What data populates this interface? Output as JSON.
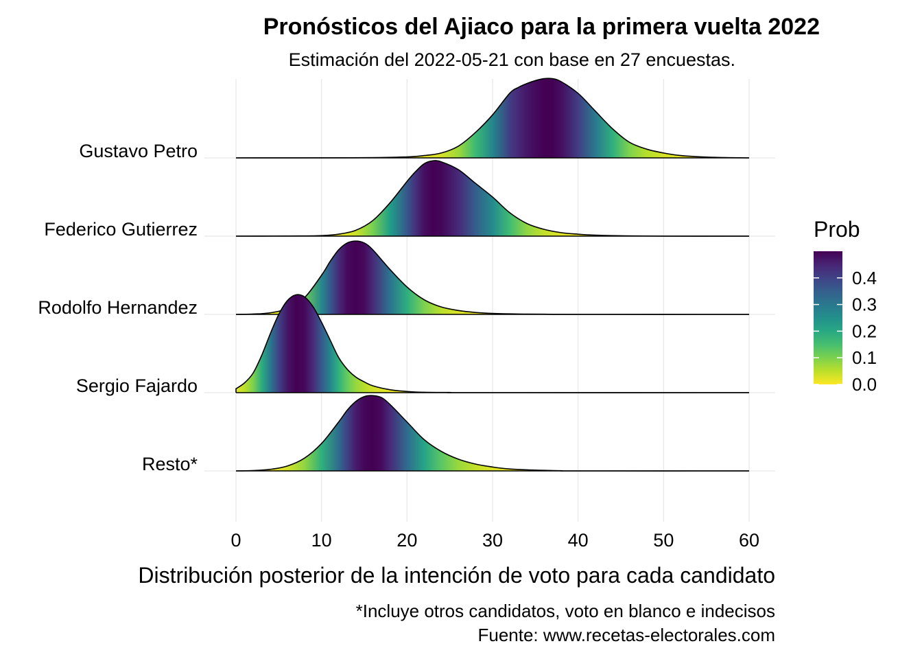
{
  "chart_data": {
    "type": "ridgeline",
    "title": "Pronósticos del Ajiaco para la primera vuelta 2022",
    "subtitle": "Estimación del 2022-05-21 con base en 27 encuestas.",
    "xlabel": "Distribución posterior de la intención de voto para cada candidato",
    "caption": [
      "*Incluye otros candidatos, voto en blanco e indecisos",
      "Fuente: www.recetas-electorales.com"
    ],
    "xlim": [
      0,
      60
    ],
    "x_ticks": [
      0,
      10,
      20,
      30,
      40,
      50,
      60
    ],
    "grid": true,
    "legend": {
      "title": "Prob",
      "placement": "right",
      "ticks": [
        0.0,
        0.1,
        0.2,
        0.3,
        0.4
      ],
      "tick_labels": [
        "0.0",
        "0.1",
        "0.2",
        "0.3",
        "0.4"
      ],
      "range": [
        0,
        0.5
      ]
    },
    "colormap": "viridis-reversed",
    "series": [
      {
        "name": "Gustavo Petro",
        "peak": 36.5,
        "points": [
          [
            0,
            0
          ],
          [
            15,
            0.001
          ],
          [
            20,
            0.005
          ],
          [
            22,
            0.012
          ],
          [
            24,
            0.025
          ],
          [
            26,
            0.06
          ],
          [
            28,
            0.13
          ],
          [
            30,
            0.22
          ],
          [
            32,
            0.33
          ],
          [
            33,
            0.36
          ],
          [
            34,
            0.38
          ],
          [
            35,
            0.395
          ],
          [
            36,
            0.405
          ],
          [
            37,
            0.405
          ],
          [
            38,
            0.39
          ],
          [
            40,
            0.33
          ],
          [
            42,
            0.24
          ],
          [
            44,
            0.15
          ],
          [
            46,
            0.08
          ],
          [
            48,
            0.045
          ],
          [
            50,
            0.025
          ],
          [
            52,
            0.012
          ],
          [
            55,
            0.004
          ],
          [
            58,
            0.001
          ],
          [
            60,
            0
          ]
        ]
      },
      {
        "name": "Federico Gutierrez",
        "peak": 23.5,
        "points": [
          [
            0,
            0
          ],
          [
            8,
            0.001
          ],
          [
            10,
            0.003
          ],
          [
            12,
            0.01
          ],
          [
            14,
            0.03
          ],
          [
            16,
            0.08
          ],
          [
            18,
            0.17
          ],
          [
            20,
            0.28
          ],
          [
            21,
            0.33
          ],
          [
            22,
            0.37
          ],
          [
            23,
            0.385
          ],
          [
            24,
            0.38
          ],
          [
            26,
            0.34
          ],
          [
            28,
            0.27
          ],
          [
            30,
            0.2
          ],
          [
            32,
            0.12
          ],
          [
            34,
            0.065
          ],
          [
            36,
            0.035
          ],
          [
            38,
            0.018
          ],
          [
            40,
            0.01
          ],
          [
            42,
            0.005
          ],
          [
            45,
            0.002
          ],
          [
            50,
            0
          ],
          [
            60,
            0
          ]
        ]
      },
      {
        "name": "Rodolfo Hernandez",
        "peak": 13.8,
        "points": [
          [
            0,
            0
          ],
          [
            2,
            0.002
          ],
          [
            4,
            0.008
          ],
          [
            6,
            0.03
          ],
          [
            8,
            0.085
          ],
          [
            10,
            0.2
          ],
          [
            11,
            0.27
          ],
          [
            12,
            0.33
          ],
          [
            13,
            0.365
          ],
          [
            14,
            0.375
          ],
          [
            15,
            0.365
          ],
          [
            16,
            0.33
          ],
          [
            18,
            0.23
          ],
          [
            20,
            0.14
          ],
          [
            22,
            0.075
          ],
          [
            24,
            0.038
          ],
          [
            26,
            0.02
          ],
          [
            28,
            0.01
          ],
          [
            30,
            0.005
          ],
          [
            33,
            0.002
          ],
          [
            36,
            0.001
          ],
          [
            40,
            0
          ],
          [
            60,
            0
          ]
        ]
      },
      {
        "name": "Sergio Fajardo",
        "peak": 7.0,
        "points": [
          [
            0,
            0.02
          ],
          [
            1,
            0.05
          ],
          [
            2,
            0.1
          ],
          [
            3,
            0.19
          ],
          [
            4,
            0.3
          ],
          [
            5,
            0.4
          ],
          [
            6,
            0.47
          ],
          [
            7,
            0.5
          ],
          [
            8,
            0.49
          ],
          [
            9,
            0.44
          ],
          [
            10,
            0.36
          ],
          [
            11,
            0.27
          ],
          [
            12,
            0.18
          ],
          [
            13,
            0.12
          ],
          [
            14,
            0.08
          ],
          [
            15,
            0.055
          ],
          [
            16,
            0.035
          ],
          [
            18,
            0.015
          ],
          [
            20,
            0.006
          ],
          [
            22,
            0.002
          ],
          [
            25,
            0.001
          ],
          [
            28,
            0
          ],
          [
            60,
            0
          ]
        ]
      },
      {
        "name": "Resto*",
        "peak": 16.0,
        "points": [
          [
            0,
            0
          ],
          [
            2,
            0.002
          ],
          [
            4,
            0.008
          ],
          [
            6,
            0.025
          ],
          [
            8,
            0.065
          ],
          [
            10,
            0.14
          ],
          [
            12,
            0.25
          ],
          [
            13,
            0.31
          ],
          [
            14,
            0.355
          ],
          [
            15,
            0.38
          ],
          [
            16,
            0.385
          ],
          [
            17,
            0.375
          ],
          [
            18,
            0.34
          ],
          [
            20,
            0.25
          ],
          [
            22,
            0.16
          ],
          [
            24,
            0.1
          ],
          [
            26,
            0.06
          ],
          [
            28,
            0.035
          ],
          [
            30,
            0.02
          ],
          [
            32,
            0.01
          ],
          [
            35,
            0.004
          ],
          [
            38,
            0.001
          ],
          [
            40,
            0
          ],
          [
            60,
            0
          ]
        ]
      }
    ]
  }
}
